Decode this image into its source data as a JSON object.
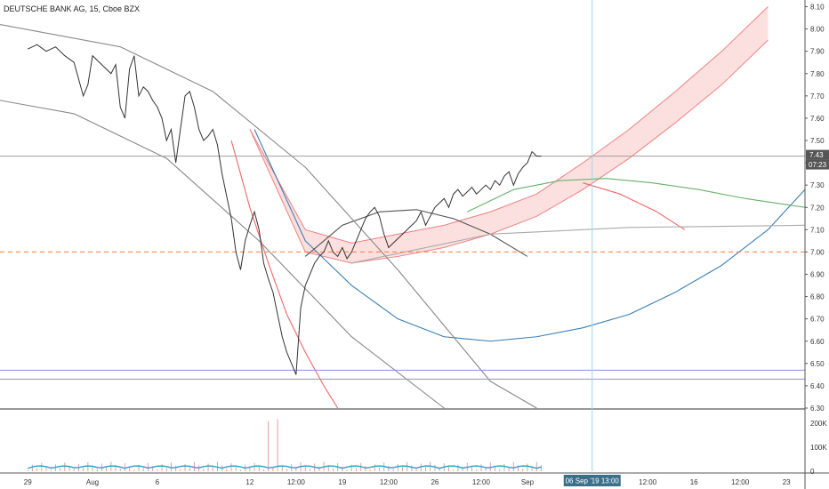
{
  "chart_data": {
    "type": "line",
    "title": "DEUTSCHE BANK AG, 15, Cboe BZX",
    "price_axis": {
      "ticks": [
        "8.10",
        "8.00",
        "7.90",
        "7.80",
        "7.70",
        "7.60",
        "7.50",
        "7.40",
        "7.30",
        "7.20",
        "7.10",
        "7.00",
        "6.90",
        "6.80",
        "6.70",
        "6.60",
        "6.50",
        "6.40",
        "6.30"
      ],
      "ylim": [
        6.3,
        8.13
      ]
    },
    "volume_axis": {
      "ticks": [
        "200K",
        "100K",
        "0"
      ],
      "ylim": [
        0,
        240000
      ]
    },
    "time_axis": {
      "labels": [
        "29",
        "Aug",
        "6",
        "12",
        "12:00",
        "19",
        "12:00",
        "26",
        "12:00",
        "Sep",
        "12:00",
        "16",
        "12:00",
        "23"
      ],
      "label_index": [
        0,
        14,
        28,
        48,
        58,
        68,
        78,
        88,
        98,
        108,
        134,
        144,
        154,
        164
      ],
      "index_range": [
        -6,
        168
      ]
    },
    "current_price": {
      "value": "7.43",
      "countdown": "07:23",
      "color": "#555555"
    },
    "crosshair": {
      "label": "06 Sep '19   13:00",
      "index": 122
    },
    "levels": [
      {
        "value": 7.43,
        "color": "#9e9e9e",
        "style": "solid"
      },
      {
        "value": 7.0,
        "color": "#ff7a3d",
        "style": "dashed"
      },
      {
        "value": 6.47,
        "color": "#8f8fe0",
        "style": "solid"
      },
      {
        "value": 6.43,
        "color": "#8f8fe0",
        "style": "solid"
      }
    ],
    "price_series": {
      "color": "#333333",
      "x": [
        0,
        2,
        4,
        6,
        8,
        10,
        12,
        13,
        14,
        15,
        16,
        17,
        18,
        19,
        20,
        21,
        22,
        23,
        24,
        25,
        26,
        27,
        28,
        29,
        30,
        31,
        32,
        33,
        34,
        35,
        36,
        37,
        38,
        39,
        40,
        41,
        42,
        43,
        44,
        45,
        46,
        47,
        48,
        49,
        50,
        51,
        52,
        53,
        54,
        55,
        56,
        57,
        58,
        59,
        60,
        61,
        62,
        63,
        64,
        65,
        66,
        67,
        68,
        69,
        70,
        71,
        72,
        73,
        74,
        75,
        76,
        77,
        78,
        79,
        80,
        81,
        82,
        83,
        84,
        85,
        86,
        87,
        88,
        89,
        90,
        91,
        92,
        93,
        94,
        95,
        96,
        97,
        98,
        99,
        100,
        101,
        102,
        103,
        104,
        105,
        106,
        107,
        108,
        109,
        110,
        111
      ],
      "y": [
        7.91,
        7.93,
        7.9,
        7.92,
        7.88,
        7.85,
        7.7,
        7.75,
        7.88,
        7.86,
        7.84,
        7.82,
        7.8,
        7.84,
        7.65,
        7.6,
        7.82,
        7.88,
        7.7,
        7.74,
        7.72,
        7.68,
        7.65,
        7.6,
        7.5,
        7.55,
        7.4,
        7.55,
        7.7,
        7.72,
        7.65,
        7.55,
        7.5,
        7.52,
        7.55,
        7.48,
        7.35,
        7.25,
        7.15,
        7.0,
        6.92,
        7.05,
        7.12,
        7.18,
        7.1,
        6.95,
        6.88,
        6.82,
        6.72,
        6.62,
        6.55,
        6.5,
        6.45,
        6.75,
        6.85,
        6.9,
        6.95,
        6.98,
        7.0,
        7.05,
        7.0,
        6.98,
        7.02,
        6.97,
        7.0,
        7.05,
        7.1,
        7.15,
        7.18,
        7.2,
        7.16,
        7.08,
        7.02,
        7.04,
        7.06,
        7.08,
        7.1,
        7.12,
        7.14,
        7.18,
        7.12,
        7.16,
        7.2,
        7.22,
        7.24,
        7.2,
        7.26,
        7.28,
        7.25,
        7.27,
        7.29,
        7.26,
        7.28,
        7.3,
        7.28,
        7.32,
        7.3,
        7.34,
        7.36,
        7.3,
        7.35,
        7.38,
        7.4,
        7.45,
        7.43,
        7.43
      ]
    },
    "drawings": [
      {
        "type": "fan_band",
        "color": "#f08080",
        "fill": "#f9c7c7",
        "x": [
          48,
          60,
          70,
          80,
          90,
          100,
          110,
          120,
          130,
          140,
          150,
          160
        ],
        "upper": [
          7.55,
          7.1,
          7.04,
          7.08,
          7.12,
          7.18,
          7.26,
          7.4,
          7.55,
          7.72,
          7.9,
          8.1
        ],
        "lower": [
          7.55,
          7.0,
          6.95,
          6.98,
          7.02,
          7.08,
          7.16,
          7.28,
          7.42,
          7.58,
          7.75,
          7.95
        ]
      },
      {
        "type": "arc",
        "color": "#3a7fb5",
        "x": [
          49,
          60,
          70,
          80,
          90,
          100,
          110,
          120,
          130,
          140,
          150,
          160,
          168
        ],
        "y": [
          7.55,
          7.05,
          6.85,
          6.7,
          6.62,
          6.6,
          6.62,
          6.66,
          6.72,
          6.82,
          6.94,
          7.1,
          7.28
        ]
      },
      {
        "type": "arc",
        "color": "#66b266",
        "x": [
          95,
          105,
          115,
          125,
          135,
          145,
          155,
          168
        ],
        "y": [
          7.18,
          7.28,
          7.32,
          7.33,
          7.31,
          7.28,
          7.24,
          7.2
        ]
      },
      {
        "type": "arc",
        "color": "#ee6666",
        "x": [
          120,
          128,
          136,
          142
        ],
        "y": [
          7.31,
          7.26,
          7.18,
          7.1
        ]
      },
      {
        "type": "arc",
        "color": "#555555",
        "x": [
          60,
          68,
          76,
          84,
          92,
          100,
          108
        ],
        "y": [
          6.98,
          7.12,
          7.18,
          7.19,
          7.15,
          7.08,
          6.98
        ]
      },
      {
        "type": "line",
        "color": "#888888",
        "x": [
          -6,
          20,
          40,
          60,
          80,
          100,
          110
        ],
        "y": [
          8.02,
          7.92,
          7.72,
          7.38,
          6.92,
          6.42,
          6.3
        ]
      },
      {
        "type": "line",
        "color": "#888888",
        "x": [
          -6,
          10,
          30,
          50,
          70,
          90
        ],
        "y": [
          7.68,
          7.62,
          7.42,
          7.05,
          6.62,
          6.3
        ]
      },
      {
        "type": "line",
        "color": "#aaaaaa",
        "x": [
          70,
          100,
          130,
          168
        ],
        "y": [
          6.95,
          7.08,
          7.11,
          7.12
        ]
      },
      {
        "type": "line",
        "color": "#ee6666",
        "x": [
          44,
          48,
          52,
          56,
          60,
          64,
          67
        ],
        "y": [
          7.5,
          7.2,
          6.95,
          6.72,
          6.55,
          6.4,
          6.3
        ]
      }
    ],
    "volume_series": {
      "color": "#26a4c9",
      "bars_color": "#e0a0a0"
    }
  }
}
